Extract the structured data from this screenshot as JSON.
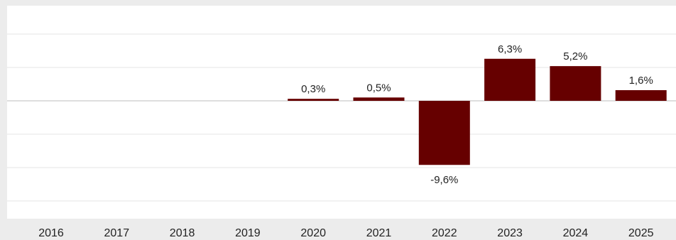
{
  "chart_data": {
    "type": "bar",
    "categories": [
      "2016",
      "2017",
      "2018",
      "2019",
      "2020",
      "2021",
      "2022",
      "2023",
      "2024",
      "2025"
    ],
    "values": [
      null,
      null,
      null,
      null,
      0.3,
      0.5,
      -9.6,
      6.3,
      5.2,
      1.6
    ],
    "data_labels": [
      "",
      "",
      "",
      "",
      "0,3%",
      "0,5%",
      "-9,6%",
      "6,3%",
      "5,2%",
      "1,6%"
    ],
    "title": "",
    "xlabel": "",
    "ylabel": "",
    "ylim": [
      -14,
      14
    ],
    "grid": true,
    "legend": "none",
    "colors": {
      "bar": "#660000",
      "grid": "#e4e4e4",
      "zero_line": "#bdbdbd",
      "plot_bg": "#ffffff",
      "page_bg": "#ececec"
    }
  }
}
